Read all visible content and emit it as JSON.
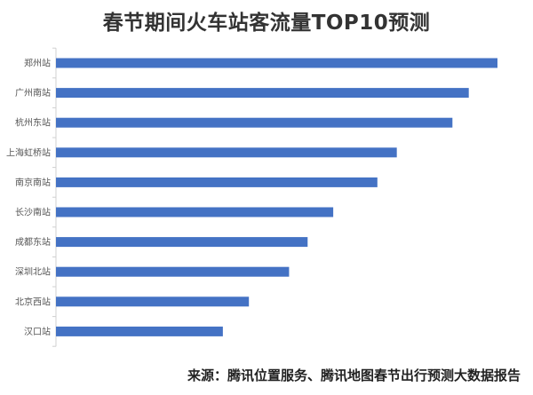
{
  "chart_data": {
    "type": "bar",
    "orientation": "horizontal",
    "title": "春节期间火车站客流量TOP10预测",
    "categories": [
      "郑州站",
      "广州南站",
      "杭州东站",
      "上海虹桥站",
      "南京南站",
      "长沙南站",
      "成都东站",
      "深圳北站",
      "北京西站",
      "汉口站"
    ],
    "values": [
      100,
      93.5,
      89.8,
      77.2,
      72.8,
      62.8,
      57.0,
      52.8,
      43.7,
      37.8
    ],
    "xlabel": "",
    "ylabel": "",
    "xlim": [
      0,
      100
    ],
    "grid": false,
    "bar_color": "#4472c4",
    "axis_color": "#d0d0d0"
  },
  "source": "来源：腾讯位置服务、腾讯地图春节出行预测大数据报告"
}
